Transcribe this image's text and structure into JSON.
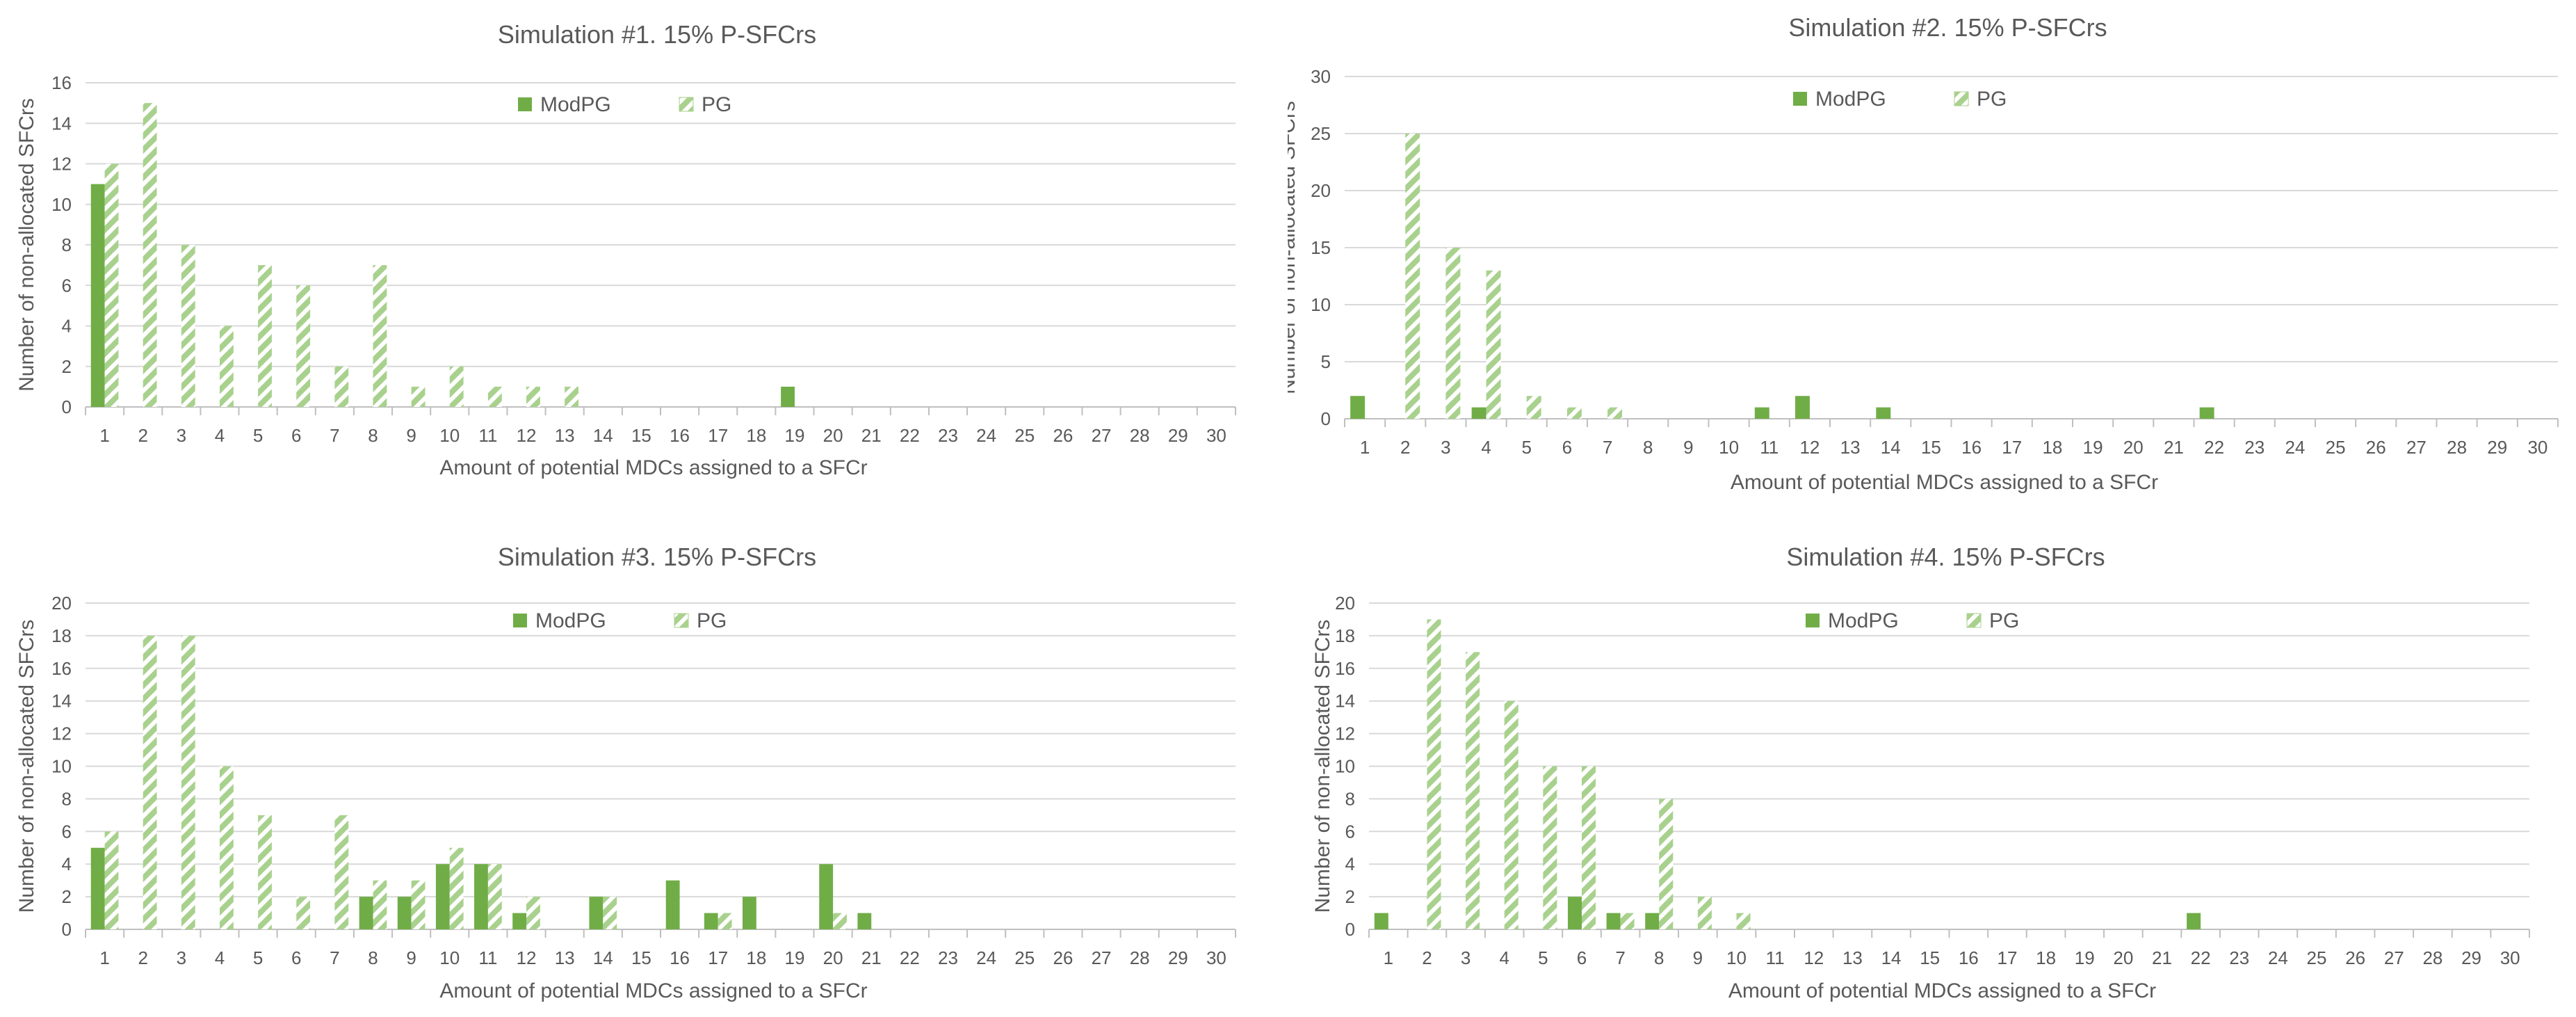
{
  "colors": {
    "modpg": "#70ad47",
    "pg": "#a9d18e",
    "grid": "#d9d9d9",
    "axis": "#bfbfbf",
    "text": "#595959"
  },
  "chart_data": [
    {
      "type": "bar",
      "title": "Simulation #1. 15% P-SFCrs",
      "xlabel": "Amount of potential MDCs assigned to a SFCr",
      "ylabel": "Number of non-allocated SFCrs",
      "ylim": [
        0,
        16
      ],
      "yticks": [
        "0",
        "2",
        "4",
        "6",
        "8",
        "10",
        "12",
        "14",
        "16"
      ],
      "grid": true,
      "legend": "top-center",
      "categories": [
        "1",
        "2",
        "3",
        "4",
        "5",
        "6",
        "7",
        "8",
        "9",
        "10",
        "11",
        "12",
        "13",
        "14",
        "15",
        "16",
        "17",
        "18",
        "19",
        "20",
        "21",
        "22",
        "23",
        "24",
        "25",
        "26",
        "27",
        "28",
        "29",
        "30"
      ],
      "series": [
        {
          "name": "ModPG",
          "style": "solid",
          "values": [
            11,
            0,
            0,
            0,
            0,
            0,
            0,
            0,
            0,
            0,
            0,
            0,
            0,
            0,
            0,
            0,
            0,
            0,
            1,
            0,
            0,
            0,
            0,
            0,
            0,
            0,
            0,
            0,
            0,
            0
          ]
        },
        {
          "name": "PG",
          "style": "hatched",
          "values": [
            12,
            15,
            8,
            4,
            7,
            6,
            2,
            7,
            1,
            2,
            1,
            1,
            1,
            0,
            0,
            0,
            0,
            0,
            0,
            0,
            0,
            0,
            0,
            0,
            0,
            0,
            0,
            0,
            0,
            0
          ]
        }
      ]
    },
    {
      "type": "bar",
      "title": "Simulation #2. 15% P-SFCrs",
      "xlabel": "Amount of potential MDCs assigned to a SFCr",
      "ylabel": "Number of non-allocated SFCrs",
      "ylim": [
        0,
        30
      ],
      "yticks": [
        "0",
        "5",
        "10",
        "15",
        "20",
        "25",
        "30"
      ],
      "grid": true,
      "legend": "top-center",
      "categories": [
        "1",
        "2",
        "3",
        "4",
        "5",
        "6",
        "7",
        "8",
        "9",
        "10",
        "11",
        "12",
        "13",
        "14",
        "15",
        "16",
        "17",
        "18",
        "19",
        "20",
        "21",
        "22",
        "23",
        "24",
        "25",
        "26",
        "27",
        "28",
        "29",
        "30"
      ],
      "series": [
        {
          "name": "ModPG",
          "style": "solid",
          "values": [
            2,
            0,
            0,
            1,
            0,
            0,
            0,
            0,
            0,
            0,
            1,
            2,
            0,
            1,
            0,
            0,
            0,
            0,
            0,
            0,
            0,
            1,
            0,
            0,
            0,
            0,
            0,
            0,
            0,
            0
          ]
        },
        {
          "name": "PG",
          "style": "hatched",
          "values": [
            0,
            25,
            15,
            13,
            2,
            1,
            1,
            0,
            0,
            0,
            0,
            0,
            0,
            0,
            0,
            0,
            0,
            0,
            0,
            0,
            0,
            0,
            0,
            0,
            0,
            0,
            0,
            0,
            0,
            0
          ]
        }
      ]
    },
    {
      "type": "bar",
      "title": "Simulation #3. 15% P-SFCrs",
      "xlabel": "Amount of potential MDCs assigned to a SFCr",
      "ylabel": "Number of non-allocated SFCrs",
      "ylim": [
        0,
        20
      ],
      "yticks": [
        "0",
        "2",
        "4",
        "6",
        "8",
        "10",
        "12",
        "14",
        "16",
        "18",
        "20"
      ],
      "grid": true,
      "legend": "top-center",
      "categories": [
        "1",
        "2",
        "3",
        "4",
        "5",
        "6",
        "7",
        "8",
        "9",
        "10",
        "11",
        "12",
        "13",
        "14",
        "15",
        "16",
        "17",
        "18",
        "19",
        "20",
        "21",
        "22",
        "23",
        "24",
        "25",
        "26",
        "27",
        "28",
        "29",
        "30"
      ],
      "series": [
        {
          "name": "ModPG",
          "style": "solid",
          "values": [
            5,
            0,
            0,
            0,
            0,
            0,
            0,
            2,
            2,
            4,
            4,
            1,
            0,
            2,
            0,
            3,
            1,
            2,
            0,
            4,
            1,
            0,
            0,
            0,
            0,
            0,
            0,
            0,
            0,
            0
          ]
        },
        {
          "name": "PG",
          "style": "hatched",
          "values": [
            6,
            18,
            18,
            10,
            7,
            2,
            7,
            3,
            3,
            5,
            4,
            2,
            0,
            2,
            0,
            0,
            1,
            0,
            0,
            1,
            0,
            0,
            0,
            0,
            0,
            0,
            0,
            0,
            0,
            0
          ]
        }
      ]
    },
    {
      "type": "bar",
      "title": "Simulation #4. 15% P-SFCrs",
      "xlabel": "Amount of potential MDCs assigned to a SFCr",
      "ylabel": "Number of non-allocated SFCrs",
      "ylim": [
        0,
        20
      ],
      "yticks": [
        "0",
        "2",
        "4",
        "6",
        "8",
        "10",
        "12",
        "14",
        "16",
        "18",
        "20"
      ],
      "grid": true,
      "legend": "top-center",
      "categories": [
        "1",
        "2",
        "3",
        "4",
        "5",
        "6",
        "7",
        "8",
        "9",
        "10",
        "11",
        "12",
        "13",
        "14",
        "15",
        "16",
        "17",
        "18",
        "19",
        "20",
        "21",
        "22",
        "23",
        "24",
        "25",
        "26",
        "27",
        "28",
        "29",
        "30"
      ],
      "series": [
        {
          "name": "ModPG",
          "style": "solid",
          "values": [
            1,
            0,
            0,
            0,
            0,
            2,
            1,
            1,
            0,
            0,
            0,
            0,
            0,
            0,
            0,
            0,
            0,
            0,
            0,
            0,
            0,
            1,
            0,
            0,
            0,
            0,
            0,
            0,
            0,
            0
          ]
        },
        {
          "name": "PG",
          "style": "hatched",
          "values": [
            0,
            19,
            17,
            14,
            10,
            10,
            1,
            8,
            2,
            1,
            0,
            0,
            0,
            0,
            0,
            0,
            0,
            0,
            0,
            0,
            0,
            0,
            0,
            0,
            0,
            0,
            0,
            0,
            0,
            0
          ]
        }
      ]
    }
  ]
}
